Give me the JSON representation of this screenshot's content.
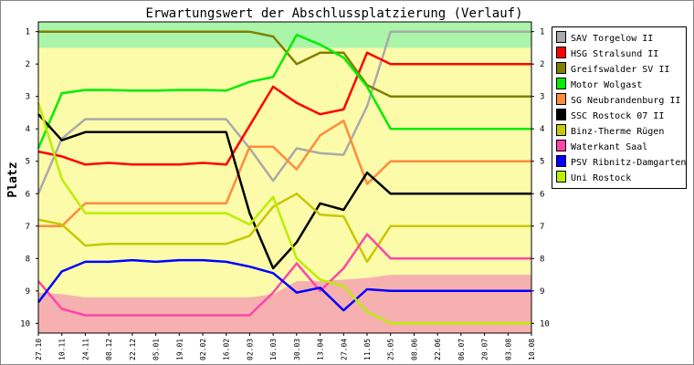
{
  "chart_data": {
    "type": "line",
    "title": "Erwartungswert der Abschlussplatzierung (Verlauf)",
    "xlabel": "",
    "ylabel": "Platz",
    "ylim": [
      0.7,
      10.3
    ],
    "y_ticks": [
      "1",
      "2",
      "3",
      "4",
      "5",
      "6",
      "7",
      "8",
      "9",
      "10"
    ],
    "x": [
      "27.10",
      "10.11",
      "24.11",
      "08.12",
      "22.12",
      "05.01",
      "19.01",
      "02.02",
      "16.02",
      "02.03",
      "16.03",
      "30.03",
      "13.04",
      "27.04",
      "11.05",
      "25.05",
      "08.06",
      "22.06",
      "06.07",
      "20.07",
      "03.08",
      "10.08"
    ],
    "bands": [
      {
        "name": "top",
        "color": "#aaf5aa",
        "values": [
          1.5,
          1.5,
          1.5,
          1.5,
          1.5,
          1.5,
          1.5,
          1.5,
          1.5,
          1.5,
          1.5,
          1.5,
          1.5,
          1.5,
          1.5,
          1.5,
          1.5,
          1.5,
          1.5,
          1.5,
          1.5,
          1.5
        ]
      },
      {
        "name": "bottom",
        "color": "#f7b0b0",
        "values": [
          9.05,
          9.1,
          9.2,
          9.2,
          9.2,
          9.2,
          9.2,
          9.2,
          9.2,
          9.2,
          9.1,
          8.7,
          8.7,
          8.65,
          8.6,
          8.5,
          8.5,
          8.5,
          8.5,
          8.5,
          8.5,
          8.5
        ]
      }
    ],
    "middle_color": "#fbfbaa",
    "series": [
      {
        "name": "SAV Torgelow II",
        "color": "#aaaaaa",
        "values": [
          6.0,
          4.3,
          3.7,
          3.7,
          3.7,
          3.7,
          3.7,
          3.7,
          3.7,
          4.6,
          5.6,
          4.6,
          4.75,
          4.8,
          3.3,
          1.0,
          1.0,
          1.0,
          1.0,
          1.0,
          1.0,
          1.0
        ]
      },
      {
        "name": "HSG Stralsund II",
        "color": "#ff0000",
        "values": [
          4.7,
          4.85,
          5.1,
          5.05,
          5.1,
          5.1,
          5.1,
          5.05,
          5.1,
          3.9,
          2.7,
          3.2,
          3.55,
          3.4,
          1.65,
          2.0,
          2.0,
          2.0,
          2.0,
          2.0,
          2.0,
          2.0
        ]
      },
      {
        "name": "Greifswalder SV II",
        "color": "#808000",
        "values": [
          1.0,
          1.0,
          1.0,
          1.0,
          1.0,
          1.0,
          1.0,
          1.0,
          1.0,
          1.0,
          1.15,
          2.0,
          1.65,
          1.65,
          2.65,
          3.0,
          3.0,
          3.0,
          3.0,
          3.0,
          3.0,
          3.0
        ]
      },
      {
        "name": "Motor Wolgast",
        "color": "#00ee00",
        "values": [
          4.6,
          2.9,
          2.8,
          2.8,
          2.82,
          2.82,
          2.8,
          2.8,
          2.82,
          2.55,
          2.4,
          1.1,
          1.4,
          1.8,
          2.7,
          4.0,
          4.0,
          4.0,
          4.0,
          4.0,
          4.0,
          4.0
        ]
      },
      {
        "name": "SG Neubrandenburg II",
        "color": "#ff8c3c",
        "values": [
          7.0,
          7.0,
          6.3,
          6.3,
          6.3,
          6.3,
          6.3,
          6.3,
          6.3,
          4.55,
          4.55,
          5.25,
          4.2,
          3.75,
          5.7,
          5.0,
          5.0,
          5.0,
          5.0,
          5.0,
          5.0,
          5.0
        ]
      },
      {
        "name": "SSC Rostock 07 II",
        "color": "#000000",
        "values": [
          3.55,
          4.35,
          4.1,
          4.1,
          4.1,
          4.1,
          4.1,
          4.1,
          4.1,
          6.6,
          8.3,
          7.5,
          6.3,
          6.5,
          5.35,
          6.0,
          6.0,
          6.0,
          6.0,
          6.0,
          6.0,
          6.0
        ]
      },
      {
        "name": "Binz-Therme Rügen",
        "color": "#c8c800",
        "values": [
          6.8,
          6.95,
          7.6,
          7.55,
          7.55,
          7.55,
          7.55,
          7.55,
          7.55,
          7.3,
          6.4,
          6.0,
          6.65,
          6.7,
          8.1,
          7.0,
          7.0,
          7.0,
          7.0,
          7.0,
          7.0,
          7.0
        ]
      },
      {
        "name": "Waterkant Saal",
        "color": "#ff44aa",
        "values": [
          8.7,
          9.55,
          9.75,
          9.75,
          9.75,
          9.75,
          9.75,
          9.75,
          9.75,
          9.75,
          9.05,
          8.15,
          9.0,
          8.3,
          7.25,
          8.0,
          8.0,
          8.0,
          8.0,
          8.0,
          8.0,
          8.0
        ]
      },
      {
        "name": "PSV Ribnitz-Damgarten",
        "color": "#0000ff",
        "values": [
          9.35,
          8.4,
          8.1,
          8.1,
          8.05,
          8.1,
          8.05,
          8.05,
          8.1,
          8.25,
          8.45,
          9.05,
          8.9,
          9.6,
          8.95,
          9.0,
          9.0,
          9.0,
          9.0,
          9.0,
          9.0,
          9.0
        ]
      },
      {
        "name": "Uni Rostock",
        "color": "#bbee00",
        "values": [
          3.2,
          5.55,
          6.6,
          6.6,
          6.6,
          6.6,
          6.6,
          6.6,
          6.6,
          6.95,
          6.1,
          8.0,
          8.65,
          8.85,
          9.65,
          10.0,
          10.0,
          10.0,
          10.0,
          10.0,
          10.0,
          10.0
        ]
      }
    ]
  }
}
